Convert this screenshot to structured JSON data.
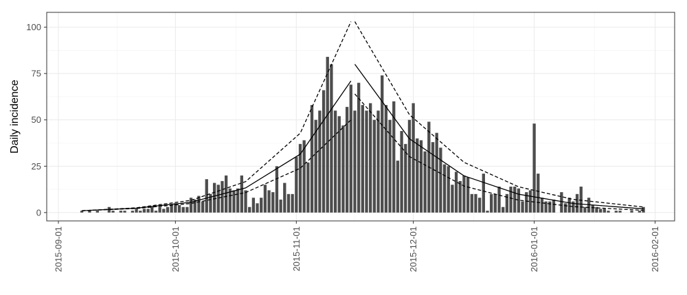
{
  "chart_data": {
    "type": "bar",
    "ylabel": "Daily incidence",
    "xlim": [
      "2015-08-29",
      "2016-02-06"
    ],
    "ylim": [
      -4.5,
      108
    ],
    "xticks": [
      "2015-09-01",
      "2015-10-01",
      "2015-11-01",
      "2015-12-01",
      "2016-01-01",
      "2016-02-01"
    ],
    "yticks": [
      0,
      25,
      50,
      75,
      100
    ],
    "grid": true,
    "series": [
      {
        "type": "bar",
        "color": "#4d4d4d",
        "x": [
          "2015-09-07",
          "2015-09-08",
          "2015-09-09",
          "2015-09-10",
          "2015-09-11",
          "2015-09-12",
          "2015-09-13",
          "2015-09-14",
          "2015-09-15",
          "2015-09-16",
          "2015-09-17",
          "2015-09-18",
          "2015-09-19",
          "2015-09-20",
          "2015-09-21",
          "2015-09-22",
          "2015-09-23",
          "2015-09-24",
          "2015-09-25",
          "2015-09-26",
          "2015-09-27",
          "2015-09-28",
          "2015-09-29",
          "2015-09-30",
          "2015-10-01",
          "2015-10-02",
          "2015-10-03",
          "2015-10-04",
          "2015-10-05",
          "2015-10-06",
          "2015-10-07",
          "2015-10-08",
          "2015-10-09",
          "2015-10-10",
          "2015-10-11",
          "2015-10-12",
          "2015-10-13",
          "2015-10-14",
          "2015-10-15",
          "2015-10-16",
          "2015-10-17",
          "2015-10-18",
          "2015-10-19",
          "2015-10-20",
          "2015-10-21",
          "2015-10-22",
          "2015-10-23",
          "2015-10-24",
          "2015-10-25",
          "2015-10-26",
          "2015-10-27",
          "2015-10-28",
          "2015-10-29",
          "2015-10-30",
          "2015-10-31",
          "2015-11-01",
          "2015-11-02",
          "2015-11-03",
          "2015-11-04",
          "2015-11-05",
          "2015-11-06",
          "2015-11-07",
          "2015-11-08",
          "2015-11-09",
          "2015-11-10",
          "2015-11-11",
          "2015-11-12",
          "2015-11-13",
          "2015-11-14",
          "2015-11-15",
          "2015-11-16",
          "2015-11-17",
          "2015-11-18",
          "2015-11-19",
          "2015-11-20",
          "2015-11-21",
          "2015-11-22",
          "2015-11-23",
          "2015-11-24",
          "2015-11-25",
          "2015-11-26",
          "2015-11-27",
          "2015-11-28",
          "2015-11-29",
          "2015-11-30",
          "2015-12-01",
          "2015-12-02",
          "2015-12-03",
          "2015-12-04",
          "2015-12-05",
          "2015-12-06",
          "2015-12-07",
          "2015-12-08",
          "2015-12-09",
          "2015-12-10",
          "2015-12-11",
          "2015-12-12",
          "2015-12-13",
          "2015-12-14",
          "2015-12-15",
          "2015-12-16",
          "2015-12-17",
          "2015-12-18",
          "2015-12-19",
          "2015-12-20",
          "2015-12-21",
          "2015-12-22",
          "2015-12-23",
          "2015-12-24",
          "2015-12-25",
          "2015-12-26",
          "2015-12-27",
          "2015-12-28",
          "2015-12-29",
          "2015-12-30",
          "2015-12-31",
          "2016-01-01",
          "2016-01-02",
          "2016-01-03",
          "2016-01-04",
          "2016-01-05",
          "2016-01-06",
          "2016-01-07",
          "2016-01-08",
          "2016-01-09",
          "2016-01-10",
          "2016-01-11",
          "2016-01-12",
          "2016-01-13",
          "2016-01-14",
          "2016-01-15",
          "2016-01-16",
          "2016-01-17",
          "2016-01-18",
          "2016-01-19",
          "2016-01-20",
          "2016-01-21",
          "2016-01-22",
          "2016-01-23",
          "2016-01-24",
          "2016-01-25",
          "2016-01-26",
          "2016-01-27",
          "2016-01-28",
          "2016-01-29"
        ],
        "values": [
          1,
          0,
          1,
          0,
          1,
          0,
          0,
          3,
          1,
          0,
          1,
          1,
          0,
          1,
          2,
          1,
          2,
          2,
          3,
          1,
          3,
          2,
          3,
          4,
          5,
          4,
          3,
          3,
          8,
          7,
          9,
          6,
          18,
          10,
          16,
          15,
          17,
          20,
          13,
          12,
          13,
          20,
          12,
          3,
          8,
          5,
          8,
          15,
          12,
          11,
          25,
          7,
          16,
          10,
          10,
          30,
          37,
          39,
          27,
          58,
          50,
          55,
          66,
          84,
          80,
          55,
          52,
          47,
          57,
          69,
          55,
          70,
          58,
          55,
          59,
          50,
          55,
          74,
          58,
          50,
          60,
          28,
          44,
          37,
          50,
          59,
          40,
          39,
          33,
          49,
          38,
          43,
          35,
          26,
          25,
          15,
          22,
          17,
          20,
          19,
          10,
          10,
          8,
          21,
          1,
          10,
          10,
          14,
          3,
          10,
          14,
          14,
          13,
          6,
          11,
          12,
          48,
          21,
          8,
          6,
          6,
          7,
          0,
          11,
          5,
          8,
          6,
          10,
          14,
          3,
          8,
          4,
          3,
          2,
          2,
          1,
          0,
          1,
          1,
          0,
          0,
          1,
          0,
          1,
          3
        ]
      },
      {
        "type": "line",
        "color": "#000000",
        "dashed": false,
        "x": [
          "2015-09-07",
          "2015-09-21",
          "2015-10-05",
          "2015-10-19",
          "2015-11-02",
          "2015-11-15"
        ],
        "values": [
          1,
          2.37,
          5.6,
          13.3,
          31.5,
          71
        ]
      },
      {
        "type": "line",
        "color": "#000000",
        "dashed": true,
        "x": [
          "2015-09-07",
          "2015-09-21",
          "2015-10-05",
          "2015-10-19",
          "2015-11-02",
          "2015-11-15"
        ],
        "values": [
          1,
          2.56,
          6.6,
          16.7,
          42.8,
          103
        ]
      },
      {
        "type": "line",
        "color": "#000000",
        "dashed": true,
        "x": [
          "2015-09-07",
          "2015-09-21",
          "2015-10-05",
          "2015-10-19",
          "2015-11-02",
          "2015-11-15"
        ],
        "values": [
          1,
          2.21,
          4.9,
          10.8,
          23.9,
          50
        ]
      },
      {
        "type": "line",
        "color": "#000000",
        "dashed": false,
        "x": [
          "2015-11-16",
          "2015-11-30",
          "2015-12-14",
          "2015-12-28",
          "2016-01-11",
          "2016-01-29"
        ],
        "values": [
          80,
          39.8,
          19.8,
          9.9,
          4.9,
          2
        ]
      },
      {
        "type": "line",
        "color": "#000000",
        "dashed": true,
        "x": [
          "2015-11-16",
          "2015-11-30",
          "2015-12-14",
          "2015-12-28",
          "2016-01-11",
          "2016-01-29"
        ],
        "values": [
          103,
          52.8,
          27.1,
          13.9,
          7.1,
          3
        ]
      },
      {
        "type": "line",
        "color": "#000000",
        "dashed": true,
        "x": [
          "2015-11-16",
          "2015-11-30",
          "2015-12-14",
          "2015-12-28",
          "2016-01-11",
          "2016-01-29"
        ],
        "values": [
          64,
          30.2,
          14.3,
          6.7,
          3.2,
          1.2
        ]
      }
    ]
  }
}
